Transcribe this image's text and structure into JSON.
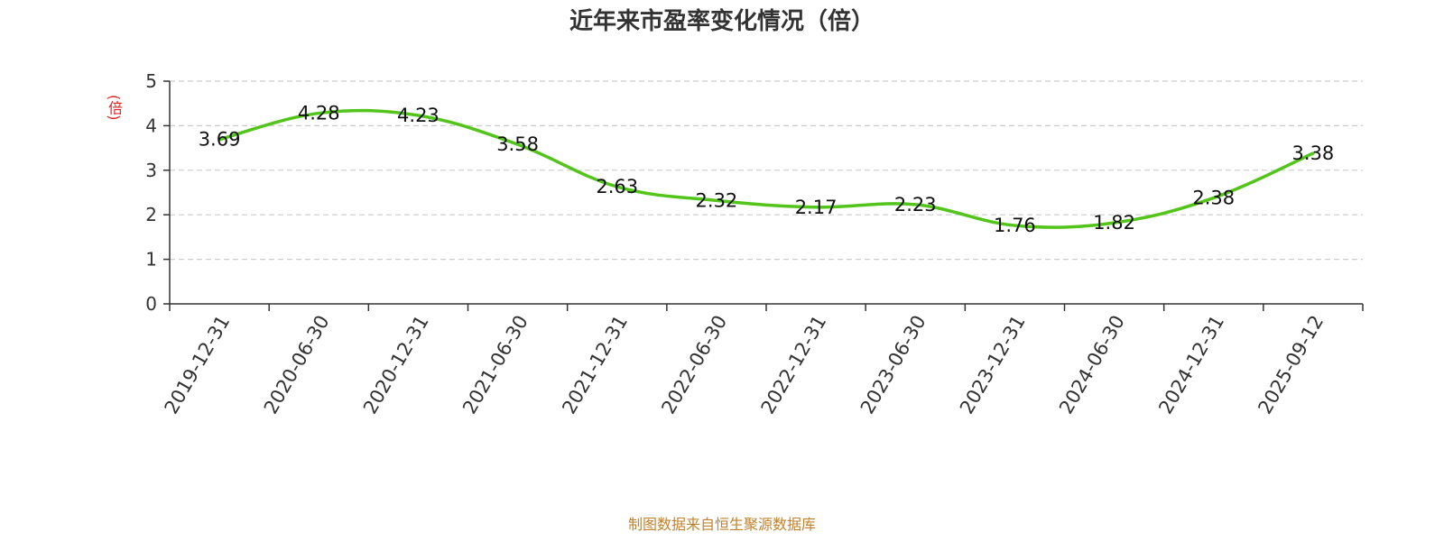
{
  "title": "近年来市盈率变化情况（倍）",
  "y_unit": "(倍)",
  "source": "制图数据来自恒生聚源数据库",
  "colors": {
    "line": "#52c41a",
    "grid": "#cccccc",
    "axis": "#333333",
    "unit": "#e0211f",
    "source": "#c0822e"
  },
  "chart_data": {
    "type": "line",
    "title": "近年来市盈率变化情况（倍）",
    "xlabel": "",
    "ylabel": "(倍)",
    "categories": [
      "2019-12-31",
      "2020-06-30",
      "2020-12-31",
      "2021-06-30",
      "2021-12-31",
      "2022-06-30",
      "2022-12-31",
      "2023-06-30",
      "2023-12-31",
      "2024-06-30",
      "2024-12-31",
      "2025-09-12"
    ],
    "values": [
      3.69,
      4.28,
      4.23,
      3.58,
      2.63,
      2.32,
      2.17,
      2.23,
      1.76,
      1.82,
      2.38,
      3.38
    ],
    "labels": [
      "3.69",
      "4.28",
      "4.23",
      "3.58",
      "2.63",
      "2.32",
      "2.17",
      "2.23",
      "1.76",
      "1.82",
      "2.38",
      "3.38"
    ],
    "ylim": [
      0,
      5
    ],
    "yticks": [
      "0",
      "1",
      "2",
      "3",
      "4",
      "5"
    ],
    "grid": true,
    "legend": "none"
  }
}
